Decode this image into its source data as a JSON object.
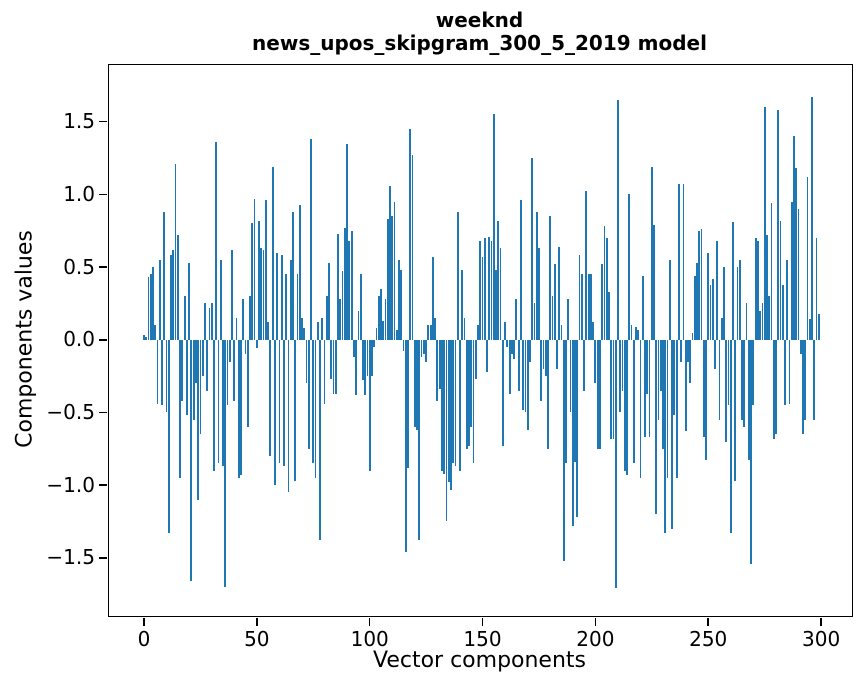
{
  "figure": {
    "title_line1": "weeknd",
    "title_line2": "news_upos_skipgram_300_5_2019 model",
    "xlabel": "Vector components",
    "ylabel": "Components values",
    "bar_color": "#1f77b4",
    "background": "#ffffff",
    "spine_color": "#000000"
  },
  "chart_data": {
    "type": "bar",
    "title": "weeknd\nnews_upos_skipgram_300_5_2019 model",
    "xlabel": "Vector components",
    "ylabel": "Components values",
    "grid": false,
    "legend": false,
    "bar_color": "#1f77b4",
    "x_ticks": [
      0,
      50,
      100,
      150,
      200,
      250,
      300
    ],
    "y_ticks": [
      1.5,
      1.0,
      0.5,
      0.0,
      -0.5,
      -1.0,
      -1.5
    ],
    "xlim": [
      -15.5,
      313.7
    ],
    "ylim": [
      -1.9,
      1.89
    ],
    "n_components": 300,
    "values": [
      0.03,
      0.02,
      0.43,
      0.45,
      0.5,
      0.1,
      -0.44,
      0.55,
      -0.45,
      0.88,
      -0.5,
      -1.33,
      0.58,
      0.62,
      1.21,
      0.72,
      -0.95,
      -0.42,
      0.3,
      -0.52,
      0.53,
      -1.66,
      -0.55,
      -0.3,
      -1.1,
      -0.65,
      -0.25,
      0.25,
      -0.35,
      0.22,
      0.25,
      -0.9,
      1.36,
      -0.85,
      0.55,
      -0.87,
      -1.7,
      -0.45,
      -0.15,
      0.62,
      -0.42,
      0.15,
      -0.95,
      -0.93,
      0.28,
      -0.1,
      -0.6,
      0.3,
      0.8,
      0.97,
      -0.06,
      0.82,
      0.63,
      0.62,
      0.96,
      0.12,
      -0.8,
      1.19,
      -1.0,
      0.6,
      -0.85,
      0.58,
      -0.87,
      0.45,
      -1.05,
      0.55,
      0.88,
      -0.97,
      0.45,
      0.93,
      0.15,
      0.08,
      -0.3,
      -0.75,
      1.38,
      -0.85,
      -0.95,
      0.12,
      -1.38,
      0.15,
      -0.44,
      0.3,
      0.53,
      -0.27,
      -0.37,
      -0.37,
      0.73,
      0.28,
      0.47,
      0.77,
      1.35,
      0.68,
      0.75,
      -0.12,
      -0.38,
      0.2,
      0.45,
      -0.28,
      -0.38,
      -0.25,
      -0.9,
      -0.25,
      -0.05,
      0.08,
      0.3,
      0.35,
      0.13,
      0.28,
      0.83,
      1.06,
      0.85,
      0.95,
      0.07,
      0.55,
      0.48,
      -0.08,
      -1.46,
      -0.88,
      1.45,
      1.27,
      -0.6,
      -0.62,
      -1.38,
      -0.12,
      -0.1,
      -0.15,
      0.1,
      0.1,
      0.57,
      0.15,
      -0.42,
      -0.34,
      -0.9,
      -0.92,
      -1.25,
      -0.98,
      -1.03,
      -0.85,
      -0.87,
      0.88,
      -0.9,
      0.48,
      0.15,
      -0.75,
      -0.73,
      -0.6,
      -0.85,
      -0.27,
      0.1,
      0.68,
      0.57,
      0.7,
      -0.22,
      0.71,
      0.68,
      1.55,
      0.48,
      0.82,
      0.63,
      -0.73,
      0.12,
      -0.05,
      -0.37,
      -0.1,
      -0.13,
      0.28,
      -0.35,
      0.96,
      -0.48,
      -0.5,
      -0.62,
      -0.15,
      1.25,
      0.25,
      0.88,
      0.63,
      -0.42,
      -0.2,
      -0.25,
      -0.75,
      0.85,
      0.3,
      0.52,
      -0.2,
      0.64,
      0.1,
      -1.52,
      -0.85,
      0.28,
      -0.5,
      -1.28,
      -0.84,
      -1.22,
      0.58,
      0.45,
      -0.35,
      1.02,
      0.45,
      0.45,
      0.12,
      -0.3,
      -0.75,
      -0.75,
      0.52,
      0.78,
      0.7,
      0.33,
      -0.68,
      -0.68,
      -1.71,
      1.65,
      -0.5,
      -0.35,
      -0.9,
      -0.93,
      1.0,
      0.1,
      -0.85,
      0.09,
      0.07,
      -0.95,
      0.44,
      -0.67,
      -0.37,
      -0.67,
      1.19,
      0.79,
      -1.2,
      -0.55,
      -0.35,
      -0.75,
      -1.33,
      -0.95,
      0.55,
      -1.3,
      -0.52,
      -0.95,
      1.07,
      -0.15,
      1.07,
      -0.63,
      -0.15,
      -0.3,
      0.05,
      0.44,
      0.53,
      0.75,
      0.76,
      -0.67,
      -0.83,
      0.6,
      0.38,
      0.42,
      -0.2,
      0.68,
      -0.55,
      0.15,
      0.5,
      -0.7,
      -0.45,
      -1.33,
      0.81,
      -0.97,
      0.5,
      0.55,
      -0.55,
      -0.6,
      0.25,
      -0.83,
      -1.54,
      -0.45,
      0.7,
      0.68,
      0.2,
      0.25,
      1.6,
      0.72,
      0.3,
      0.94,
      -0.68,
      -0.65,
      1.58,
      0.82,
      0.38,
      -0.45,
      0.55,
      -0.44,
      0.95,
      1.4,
      1.18,
      0.9,
      -0.1,
      -0.65,
      -0.55,
      1.12,
      0.14,
      1.67,
      -0.55,
      0.7,
      0.18
    ]
  }
}
